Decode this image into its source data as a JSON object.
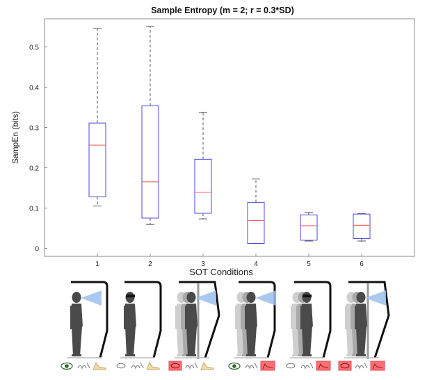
{
  "chart_data": {
    "type": "box",
    "title": "Sample Entropy (m = 2; r = 0.3*SD)",
    "xlabel": "SOT Conditions",
    "ylabel": "SampEn (bits)",
    "ylim": [
      -0.02,
      0.57
    ],
    "xlim": [
      0,
      6
    ],
    "yticks": [
      0,
      0.1,
      0.2,
      0.3,
      0.4,
      0.5
    ],
    "grid": false,
    "categories": [
      "1",
      "2",
      "3",
      "4",
      "5",
      "6"
    ],
    "boxes": [
      {
        "category": "1",
        "min": 0.105,
        "q1": 0.128,
        "median": 0.256,
        "q3": 0.311,
        "max": 0.546
      },
      {
        "category": "2",
        "min": 0.059,
        "q1": 0.075,
        "median": 0.165,
        "q3": 0.354,
        "max": 0.551
      },
      {
        "category": "3",
        "min": 0.073,
        "q1": 0.087,
        "median": 0.139,
        "q3": 0.221,
        "max": 0.338
      },
      {
        "category": "4",
        "min": 0.012,
        "q1": 0.012,
        "median": 0.069,
        "q3": 0.114,
        "max": 0.172
      },
      {
        "category": "5",
        "min": 0.018,
        "q1": 0.02,
        "median": 0.056,
        "q3": 0.083,
        "max": 0.089
      },
      {
        "category": "6",
        "min": 0.018,
        "q1": 0.024,
        "median": 0.057,
        "q3": 0.085,
        "max": 0.086
      }
    ],
    "colors": {
      "box": "#4a4ae0",
      "median": "#ff6b6b",
      "whisker": "#555555",
      "axis": "#333333"
    }
  },
  "conditions": [
    {
      "index": 1,
      "vision": "eyes-open",
      "surface": "fixed",
      "surround": "fixed"
    },
    {
      "index": 2,
      "vision": "eyes-closed",
      "surface": "fixed",
      "surround": "fixed"
    },
    {
      "index": 3,
      "vision": "sway-referenced",
      "surface": "fixed",
      "surround": "sway-referenced"
    },
    {
      "index": 4,
      "vision": "eyes-open",
      "surface": "sway-referenced",
      "surround": "fixed"
    },
    {
      "index": 5,
      "vision": "eyes-closed",
      "surface": "sway-referenced",
      "surround": "fixed"
    },
    {
      "index": 6,
      "vision": "sway-referenced",
      "surface": "sway-referenced",
      "surround": "sway-referenced"
    }
  ],
  "icons": {
    "eye": "eye-icon",
    "somatosensory": "somatosensory-icon",
    "foot": "foot-icon"
  }
}
